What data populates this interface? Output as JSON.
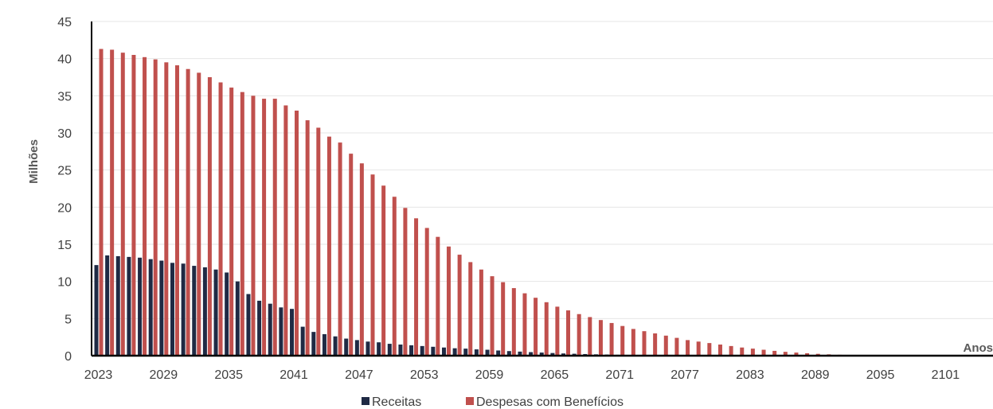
{
  "chart_data": {
    "type": "bar",
    "ylabel": "Milhões",
    "xlabel": "Anos",
    "ylim": [
      0,
      45
    ],
    "yticks": [
      0,
      5,
      10,
      15,
      20,
      25,
      30,
      35,
      40,
      45
    ],
    "xtick_labels": [
      "2023",
      "2029",
      "2035",
      "2041",
      "2047",
      "2053",
      "2059",
      "2065",
      "2071",
      "2077",
      "2083",
      "2089",
      "2095",
      "2101"
    ],
    "grid": true,
    "legend_position": "bottom",
    "x": [
      2023,
      2024,
      2025,
      2026,
      2027,
      2028,
      2029,
      2030,
      2031,
      2032,
      2033,
      2034,
      2035,
      2036,
      2037,
      2038,
      2039,
      2040,
      2041,
      2042,
      2043,
      2044,
      2045,
      2046,
      2047,
      2048,
      2049,
      2050,
      2051,
      2052,
      2053,
      2054,
      2055,
      2056,
      2057,
      2058,
      2059,
      2060,
      2061,
      2062,
      2063,
      2064,
      2065,
      2066,
      2067,
      2068,
      2069,
      2070,
      2071,
      2072,
      2073,
      2074,
      2075,
      2076,
      2077,
      2078,
      2079,
      2080,
      2081,
      2082,
      2083,
      2084,
      2085,
      2086,
      2087,
      2088,
      2089,
      2090,
      2091,
      2092,
      2093,
      2094,
      2095,
      2096,
      2097,
      2098,
      2099,
      2100,
      2101,
      2102,
      2103,
      2104,
      2105,
      2106,
      2107,
      2108,
      2109
    ],
    "series": [
      {
        "name": "Receitas",
        "color": "#1f2a44",
        "values": [
          12.2,
          13.5,
          13.4,
          13.3,
          13.2,
          13.0,
          12.8,
          12.5,
          12.4,
          12.1,
          11.9,
          11.6,
          11.2,
          10.0,
          8.3,
          7.4,
          7.0,
          6.5,
          6.3,
          3.9,
          3.2,
          2.9,
          2.6,
          2.3,
          2.1,
          1.9,
          1.8,
          1.6,
          1.5,
          1.4,
          1.3,
          1.2,
          1.1,
          1.0,
          0.95,
          0.85,
          0.8,
          0.7,
          0.62,
          0.55,
          0.48,
          0.42,
          0.36,
          0.3,
          0.26,
          0.22,
          0.18,
          0.15,
          0.12,
          0.1,
          0.08,
          0.06,
          0.05,
          0.04,
          0.03,
          0.03,
          0.02,
          0.02,
          0.01,
          0.01,
          0.01,
          0.01,
          0.01,
          0,
          0,
          0,
          0,
          0,
          0,
          0,
          0,
          0,
          0,
          0,
          0,
          0,
          0,
          0,
          0,
          0,
          0,
          0,
          0,
          0,
          0,
          0,
          0
        ]
      },
      {
        "name": "Despesas com Benefícios",
        "color": "#c0504d",
        "values": [
          41.3,
          41.2,
          40.8,
          40.5,
          40.2,
          39.9,
          39.5,
          39.1,
          38.6,
          38.1,
          37.5,
          36.8,
          36.1,
          35.5,
          35.0,
          34.6,
          34.6,
          33.7,
          33.0,
          31.7,
          30.7,
          29.5,
          28.7,
          27.2,
          25.9,
          24.4,
          22.9,
          21.4,
          19.9,
          18.5,
          17.2,
          16.0,
          14.7,
          13.6,
          12.6,
          11.6,
          10.7,
          9.9,
          9.1,
          8.4,
          7.8,
          7.2,
          6.6,
          6.1,
          5.6,
          5.2,
          4.8,
          4.4,
          4.0,
          3.6,
          3.3,
          3.0,
          2.7,
          2.4,
          2.1,
          1.9,
          1.7,
          1.5,
          1.3,
          1.1,
          0.95,
          0.8,
          0.65,
          0.52,
          0.42,
          0.33,
          0.25,
          0.18,
          0.12,
          0.08,
          0.05,
          0.03,
          0.02,
          0.01,
          0.01,
          0,
          0,
          0,
          0,
          0,
          0,
          0,
          0,
          0,
          0,
          0,
          0
        ]
      }
    ]
  },
  "legend": {
    "items": [
      {
        "label": "Receitas",
        "color": "#1f2a44"
      },
      {
        "label": "Despesas com Benefícios",
        "color": "#c0504d"
      }
    ]
  }
}
